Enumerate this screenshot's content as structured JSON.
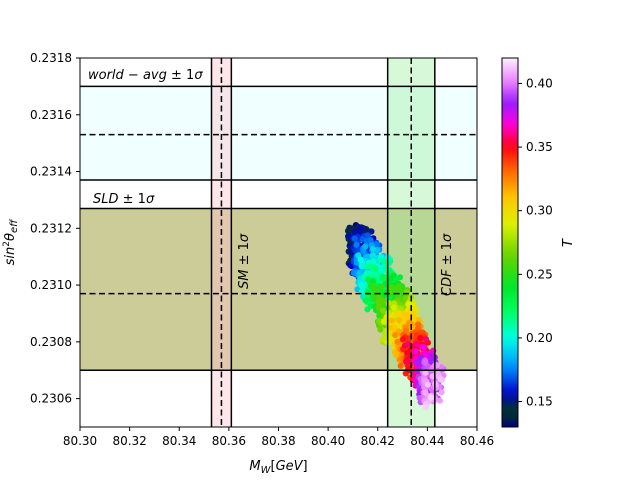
{
  "chart_data": {
    "type": "scatter",
    "xlabel": "M_W[GeV]",
    "ylabel": "sin²θ_eff",
    "xlim": [
      80.3,
      80.46
    ],
    "ylim": [
      0.2305,
      0.2318
    ],
    "x_ticks": [
      "80.30",
      "80.32",
      "80.34",
      "80.36",
      "80.38",
      "80.40",
      "80.42",
      "80.44",
      "80.46"
    ],
    "y_ticks": [
      "0.2306",
      "0.2308",
      "0.2310",
      "0.2312",
      "0.2314",
      "0.2316",
      "0.2318"
    ],
    "grid": false,
    "colorbar": {
      "label": "T",
      "range": [
        0.13,
        0.42
      ],
      "ticks": [
        "0.15",
        "0.20",
        "0.25",
        "0.30",
        "0.35",
        "0.40"
      ],
      "colormap": "gist_ncar"
    },
    "bands": [
      {
        "label": "world − avg ± 1σ",
        "orientation": "horizontal",
        "center": 0.23153,
        "lower": 0.23137,
        "upper": 0.2317,
        "fill": "#f0ffff",
        "alpha": 1.0
      },
      {
        "label": "SLD ± 1σ",
        "orientation": "horizontal",
        "center": 0.23097,
        "lower": 0.2307,
        "upper": 0.23127,
        "fill": "#808000",
        "alpha": 0.4
      },
      {
        "label": "SM ± 1σ",
        "orientation": "vertical",
        "center": 80.357,
        "lower": 80.353,
        "upper": 80.361,
        "fill": "#ffc0cb",
        "alpha": 0.4
      },
      {
        "label": "CDF ± 1σ",
        "orientation": "vertical",
        "center": 80.4335,
        "lower": 80.424,
        "upper": 80.443,
        "fill": "#90ee90",
        "alpha": 0.35
      }
    ],
    "scatter_region": {
      "x_range": [
        80.402,
        80.451
      ],
      "y_range": [
        0.23054,
        0.23122
      ],
      "T_range": [
        0.14,
        0.41
      ],
      "trend": "T increases from top-left (T≈0.14 at x≈80.41, y≈0.2312) to bottom-right (T≈0.41 at x≈80.44, y≈0.2306)"
    }
  }
}
